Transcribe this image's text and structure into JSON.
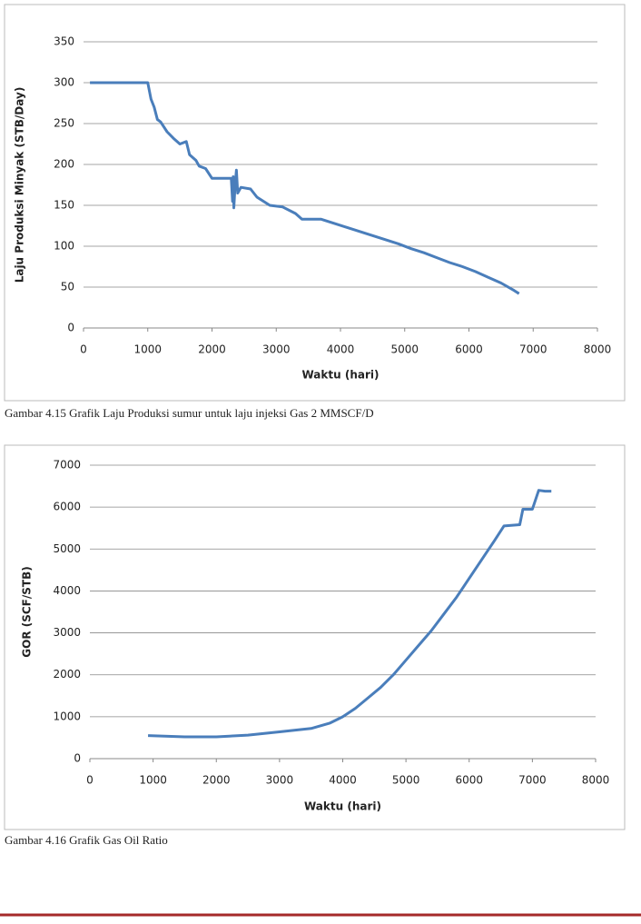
{
  "chart_data": [
    {
      "type": "line",
      "caption": "Gambar 4.15 Grafik Laju Produksi sumur untuk laju injeksi Gas 2 MMSCF/D",
      "xlabel": "Waktu (hari)",
      "ylabel": "Laju Produksi Minyak (STB/Day)",
      "color": "#4a7ebb",
      "grid": true,
      "xlim": [
        0,
        8000
      ],
      "xticks": [
        0,
        1000,
        2000,
        3000,
        4000,
        5000,
        6000,
        7000,
        8000
      ],
      "ylim": [
        0,
        350
      ],
      "yticks": [
        0,
        50,
        100,
        150,
        200,
        250,
        300,
        350
      ],
      "x": [
        100,
        1000,
        1050,
        1100,
        1150,
        1200,
        1300,
        1400,
        1500,
        1600,
        1650,
        1750,
        1800,
        1900,
        2000,
        2100,
        2300,
        2320,
        2330,
        2340,
        2360,
        2380,
        2400,
        2450,
        2600,
        2700,
        2800,
        2900,
        3100,
        3300,
        3400,
        3700,
        3900,
        4100,
        4300,
        4500,
        4700,
        4900,
        5100,
        5300,
        5500,
        5700,
        5900,
        6100,
        6300,
        6500,
        6700,
        6780
      ],
      "values": [
        300,
        300,
        280,
        270,
        255,
        252,
        240,
        232,
        225,
        228,
        212,
        205,
        198,
        195,
        183,
        183,
        183,
        155,
        185,
        147,
        175,
        193,
        165,
        172,
        170,
        160,
        155,
        150,
        148,
        140,
        133,
        133,
        128,
        123,
        118,
        113,
        108,
        103,
        97,
        92,
        86,
        80,
        75,
        69,
        62,
        55,
        46,
        42
      ]
    },
    {
      "type": "line",
      "caption": "Gambar 4.16 Grafik Gas Oil Ratio",
      "xlabel": "Waktu (hari)",
      "ylabel": "GOR (SCF/STB)",
      "color": "#4a7ebb",
      "grid": true,
      "xlim": [
        0,
        8000
      ],
      "xticks": [
        0,
        1000,
        2000,
        3000,
        4000,
        5000,
        6000,
        7000,
        8000
      ],
      "ylim": [
        0,
        7000
      ],
      "yticks": [
        0,
        1000,
        2000,
        3000,
        4000,
        5000,
        6000,
        7000
      ],
      "x": [
        920,
        1500,
        2000,
        2500,
        3000,
        3500,
        3800,
        4000,
        4200,
        4400,
        4600,
        4800,
        5000,
        5200,
        5400,
        5600,
        5800,
        6000,
        6200,
        6400,
        6550,
        6800,
        6850,
        7000,
        7100,
        7200,
        7300
      ],
      "values": [
        550,
        520,
        520,
        560,
        640,
        720,
        850,
        1000,
        1200,
        1450,
        1700,
        2000,
        2350,
        2700,
        3050,
        3450,
        3850,
        4300,
        4750,
        5200,
        5550,
        5580,
        5950,
        5950,
        6400,
        6380,
        6380
      ]
    }
  ]
}
